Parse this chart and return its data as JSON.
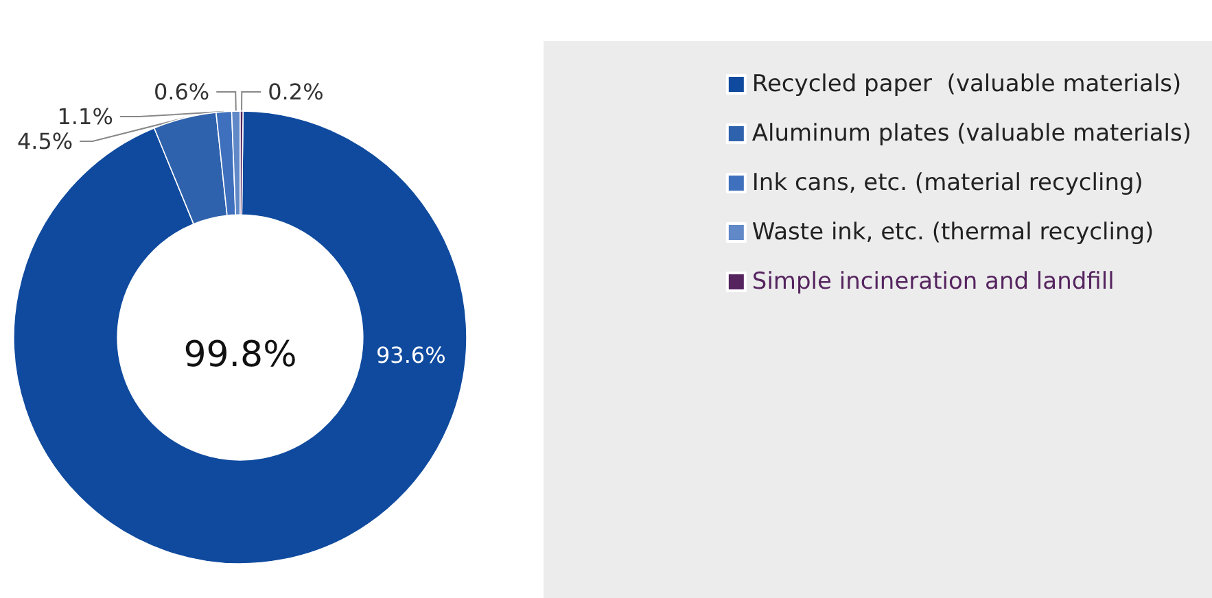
{
  "chart_data": {
    "type": "donut",
    "categories": [
      "Recycled paper  (valuable materials)",
      "Aluminum plates (valuable materials)",
      "Ink cans, etc. (material recycling)",
      "Waste ink, etc. (thermal recycling)",
      "Simple incineration and landfill"
    ],
    "values": [
      93.6,
      4.5,
      1.1,
      0.6,
      0.2
    ],
    "colors": [
      "#0f4a9e",
      "#2f62ad",
      "#3f70bd",
      "#6189c8",
      "#55245f"
    ],
    "annotations": [
      "99.8%"
    ],
    "value_labels": [
      "93.6%",
      "4.5%",
      "1.1%",
      "0.6%",
      "0.2%"
    ],
    "legend": "right"
  }
}
